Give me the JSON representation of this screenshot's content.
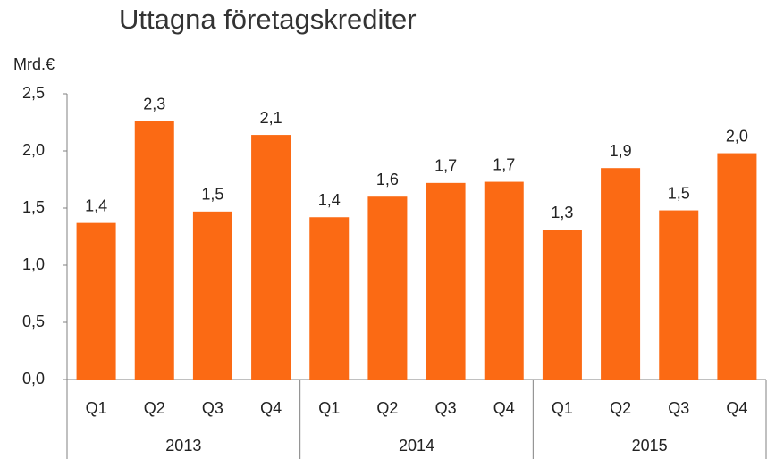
{
  "chart_data": {
    "type": "bar",
    "title": "Uttagna företagskrediter",
    "y_label": "Mrd.€",
    "categories": [
      "Q1",
      "Q2",
      "Q3",
      "Q4",
      "Q1",
      "Q2",
      "Q3",
      "Q4",
      "Q1",
      "Q2",
      "Q3",
      "Q4"
    ],
    "category_groups": [
      "2013",
      "2014",
      "2015"
    ],
    "values": [
      1.37,
      2.26,
      1.47,
      2.14,
      1.42,
      1.6,
      1.72,
      1.73,
      1.31,
      1.85,
      1.48,
      1.98
    ],
    "value_labels": [
      "1,4",
      "2,3",
      "1,5",
      "2,1",
      "1,4",
      "1,6",
      "1,7",
      "1,7",
      "1,3",
      "1,9",
      "1,5",
      "2,0"
    ],
    "color": "#fb6a14",
    "ylim": [
      0,
      2.5
    ],
    "yticks": [
      {
        "value": 0,
        "label": "0,0"
      },
      {
        "value": 0.5,
        "label": "0,5"
      },
      {
        "value": 1,
        "label": "1,0"
      },
      {
        "value": 1.5,
        "label": "1,5"
      },
      {
        "value": 2,
        "label": "2,0"
      },
      {
        "value": 2.5,
        "label": "2,5"
      }
    ],
    "grid": false
  }
}
